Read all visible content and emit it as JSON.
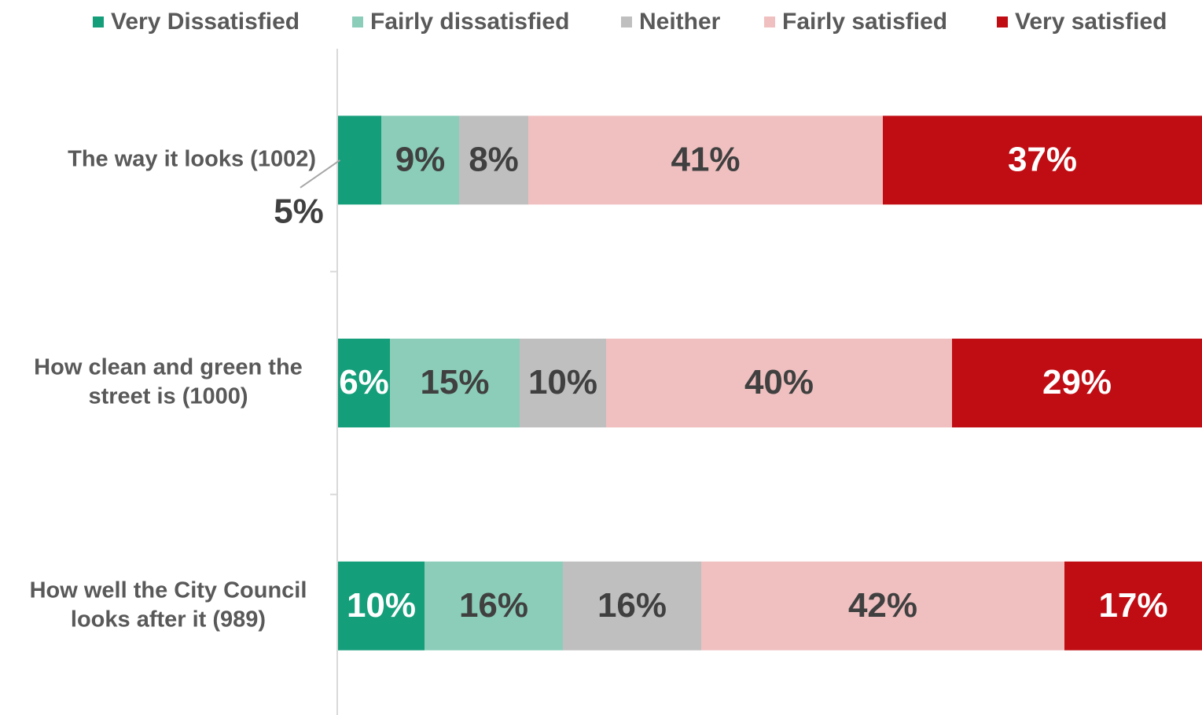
{
  "chart_data": {
    "type": "stacked_bar_horizontal",
    "categories": [
      [
        "The way it looks (1002)"
      ],
      [
        "How clean and green the",
        "street is (1000)"
      ],
      [
        "How well the City Council",
        "looks after it (989)"
      ]
    ],
    "series": [
      {
        "name": "Very Dissatisfied",
        "color": "#159e7a",
        "label_color": "#ffffff",
        "values": [
          5,
          6,
          10
        ],
        "value_labels": [
          "5%",
          "6%",
          "10%"
        ]
      },
      {
        "name": "Fairly dissatisfied",
        "color": "#8bcdb9",
        "label_color": "#404040",
        "values": [
          9,
          15,
          16
        ],
        "value_labels": [
          "9%",
          "15%",
          "16%"
        ]
      },
      {
        "name": "Neither",
        "color": "#bfbfbf",
        "label_color": "#404040",
        "values": [
          8,
          10,
          16
        ],
        "value_labels": [
          "8%",
          "10%",
          "16%"
        ]
      },
      {
        "name": "Fairly satisfied",
        "color": "#f0c0c0",
        "label_color": "#404040",
        "values": [
          41,
          40,
          42
        ],
        "value_labels": [
          "41%",
          "40%",
          "42%"
        ]
      },
      {
        "name": "Very satisfied",
        "color": "#c00d14",
        "label_color": "#ffffff",
        "values": [
          37,
          29,
          17
        ],
        "value_labels": [
          "37%",
          "29%",
          "17%"
        ]
      }
    ],
    "xlim": [
      0,
      100
    ],
    "legend": "top"
  }
}
